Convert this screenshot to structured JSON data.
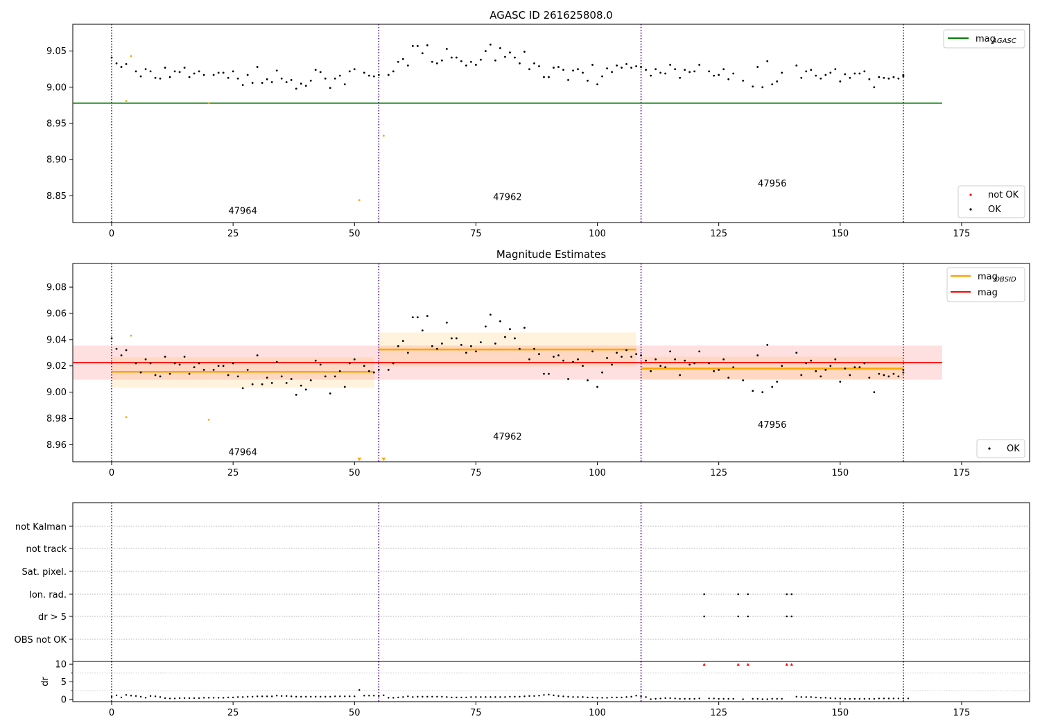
{
  "chart_data": [
    {
      "type": "scatter",
      "title": "AGASC ID 261625808.0",
      "xlim": [
        -8,
        189
      ],
      "ylim": [
        8.813,
        9.087
      ],
      "x_ticks": [
        0,
        25,
        50,
        75,
        100,
        125,
        150,
        175
      ],
      "y_ticks": [
        8.85,
        8.9,
        8.95,
        9.0,
        9.05
      ],
      "y_tick_labels": [
        "8.85",
        "8.90",
        "8.95",
        "9.00",
        "9.05"
      ],
      "obs_boundaries": [
        0,
        55,
        109,
        163
      ],
      "obsids": [
        {
          "label": "47964",
          "x": 27,
          "y": 8.825
        },
        {
          "label": "47962",
          "x": 81.5,
          "y": 8.844
        },
        {
          "label": "47956",
          "x": 136,
          "y": 8.863
        }
      ],
      "mag_agasc": 8.978,
      "mag_agasc_xrange": [
        -8,
        171
      ],
      "legend_lines": [
        {
          "label": "mag",
          "sub": "AGASC",
          "color": "#008000"
        }
      ],
      "legend_points": [
        {
          "label": "not OK",
          "color": "#ff0000"
        },
        {
          "label": "OK",
          "color": "#000000"
        }
      ],
      "ok_points": [
        [
          0,
          9.041
        ],
        [
          1,
          9.033
        ],
        [
          2,
          9.028
        ],
        [
          3,
          9.032
        ],
        [
          5,
          9.022
        ],
        [
          6,
          9.015
        ],
        [
          7,
          9.025
        ],
        [
          8,
          9.022
        ],
        [
          9,
          9.013
        ],
        [
          10,
          9.012
        ],
        [
          11,
          9.027
        ],
        [
          12,
          9.014
        ],
        [
          13,
          9.022
        ],
        [
          14,
          9.021
        ],
        [
          15,
          9.027
        ],
        [
          16,
          9.014
        ],
        [
          17,
          9.019
        ],
        [
          18,
          9.022
        ],
        [
          19,
          9.017
        ],
        [
          21,
          9.017
        ],
        [
          22,
          9.02
        ],
        [
          23,
          9.02
        ],
        [
          24,
          9.013
        ],
        [
          25,
          9.022
        ],
        [
          26,
          9.012
        ],
        [
          27,
          9.003
        ],
        [
          28,
          9.017
        ],
        [
          29,
          9.006
        ],
        [
          30,
          9.028
        ],
        [
          31,
          9.006
        ],
        [
          32,
          9.011
        ],
        [
          33,
          9.007
        ],
        [
          34,
          9.023
        ],
        [
          35,
          9.012
        ],
        [
          36,
          9.007
        ],
        [
          37,
          9.01
        ],
        [
          38,
          8.998
        ],
        [
          39,
          9.005
        ],
        [
          40,
          9.002
        ],
        [
          41,
          9.009
        ],
        [
          42,
          9.024
        ],
        [
          43,
          9.021
        ],
        [
          44,
          9.012
        ],
        [
          45,
          8.999
        ],
        [
          46,
          9.012
        ],
        [
          47,
          9.016
        ],
        [
          48,
          9.004
        ],
        [
          49,
          9.022
        ],
        [
          50,
          9.025
        ],
        [
          52,
          9.02
        ],
        [
          53,
          9.016
        ],
        [
          54,
          9.015
        ],
        [
          55,
          9.017
        ],
        [
          57,
          9.017
        ],
        [
          58,
          9.022
        ],
        [
          59,
          9.035
        ],
        [
          60,
          9.039
        ],
        [
          61,
          9.03
        ],
        [
          62,
          9.057
        ],
        [
          63,
          9.057
        ],
        [
          64,
          9.047
        ],
        [
          65,
          9.058
        ],
        [
          66,
          9.035
        ],
        [
          67,
          9.033
        ],
        [
          68,
          9.037
        ],
        [
          69,
          9.053
        ],
        [
          70,
          9.041
        ],
        [
          71,
          9.041
        ],
        [
          72,
          9.036
        ],
        [
          73,
          9.03
        ],
        [
          74,
          9.035
        ],
        [
          75,
          9.031
        ],
        [
          76,
          9.038
        ],
        [
          77,
          9.05
        ],
        [
          78,
          9.059
        ],
        [
          79,
          9.037
        ],
        [
          80,
          9.054
        ],
        [
          81,
          9.042
        ],
        [
          82,
          9.048
        ],
        [
          83,
          9.041
        ],
        [
          84,
          9.033
        ],
        [
          85,
          9.049
        ],
        [
          86,
          9.025
        ],
        [
          87,
          9.033
        ],
        [
          88,
          9.029
        ],
        [
          89,
          9.014
        ],
        [
          90,
          9.014
        ],
        [
          91,
          9.027
        ],
        [
          92,
          9.028
        ],
        [
          93,
          9.024
        ],
        [
          94,
          9.01
        ],
        [
          95,
          9.023
        ],
        [
          96,
          9.025
        ],
        [
          97,
          9.02
        ],
        [
          98,
          9.009
        ],
        [
          99,
          9.031
        ],
        [
          100,
          9.004
        ],
        [
          101,
          9.015
        ],
        [
          102,
          9.026
        ],
        [
          103,
          9.021
        ],
        [
          104,
          9.03
        ],
        [
          105,
          9.027
        ],
        [
          106,
          9.032
        ],
        [
          107,
          9.027
        ],
        [
          108,
          9.029
        ],
        [
          109,
          9.028
        ],
        [
          110,
          9.024
        ],
        [
          111,
          9.016
        ],
        [
          112,
          9.025
        ],
        [
          113,
          9.02
        ],
        [
          114,
          9.019
        ],
        [
          115,
          9.031
        ],
        [
          116,
          9.025
        ],
        [
          117,
          9.013
        ],
        [
          118,
          9.024
        ],
        [
          119,
          9.021
        ],
        [
          120,
          9.022
        ],
        [
          121,
          9.031
        ],
        [
          123,
          9.022
        ],
        [
          124,
          9.016
        ],
        [
          125,
          9.017
        ],
        [
          126,
          9.025
        ],
        [
          127,
          9.011
        ],
        [
          128,
          9.019
        ],
        [
          130,
          9.009
        ],
        [
          132,
          9.001
        ],
        [
          133,
          9.028
        ],
        [
          134,
          9.0
        ],
        [
          135,
          9.036
        ],
        [
          136,
          9.004
        ],
        [
          137,
          9.008
        ],
        [
          138,
          9.02
        ],
        [
          141,
          9.03
        ],
        [
          142,
          9.013
        ],
        [
          143,
          9.022
        ],
        [
          144,
          9.024
        ],
        [
          145,
          9.016
        ],
        [
          146,
          9.012
        ],
        [
          147,
          9.017
        ],
        [
          148,
          9.02
        ],
        [
          149,
          9.025
        ],
        [
          150,
          9.008
        ],
        [
          151,
          9.018
        ],
        [
          152,
          9.013
        ],
        [
          153,
          9.019
        ],
        [
          154,
          9.019
        ],
        [
          155,
          9.022
        ],
        [
          156,
          9.011
        ],
        [
          157,
          9.0
        ],
        [
          158,
          9.014
        ],
        [
          159,
          9.013
        ],
        [
          160,
          9.012
        ],
        [
          161,
          9.014
        ],
        [
          162,
          9.012
        ],
        [
          163,
          9.015
        ],
        [
          163,
          9.017
        ]
      ],
      "excluded_points": [
        [
          3,
          8.981
        ],
        [
          4,
          9.043
        ],
        [
          20,
          8.978
        ],
        [
          51,
          8.844
        ],
        [
          56,
          8.933
        ]
      ]
    },
    {
      "type": "scatter",
      "title": "Magnitude Estimates",
      "xlim": [
        -8,
        189
      ],
      "ylim": [
        8.947,
        9.098
      ],
      "x_ticks": [
        0,
        25,
        50,
        75,
        100,
        125,
        150,
        175
      ],
      "y_ticks": [
        8.96,
        8.98,
        9.0,
        9.02,
        9.04,
        9.06,
        9.08
      ],
      "y_tick_labels": [
        "8.96",
        "8.98",
        "9.00",
        "9.02",
        "9.04",
        "9.06",
        "9.08"
      ],
      "obs_boundaries": [
        0,
        55,
        109,
        163
      ],
      "obsids": [
        {
          "label": "47964",
          "x": 27,
          "y": 8.952
        },
        {
          "label": "47962",
          "x": 81.5,
          "y": 8.964
        },
        {
          "label": "47956",
          "x": 136,
          "y": 8.973
        }
      ],
      "mag": {
        "value": 9.0225,
        "low": 9.0095,
        "high": 9.0355,
        "xrange": [
          -8,
          171
        ]
      },
      "mag_obsid": [
        {
          "x0": 0,
          "x1": 54,
          "value": 9.0155,
          "low": 9.0035,
          "high": 9.0265
        },
        {
          "x0": 55,
          "x1": 108,
          "value": 9.0325,
          "low": 9.0195,
          "high": 9.0455
        },
        {
          "x0": 109,
          "x1": 163,
          "value": 9.018,
          "low": 9.01,
          "high": 9.027
        }
      ],
      "legend_lines": [
        {
          "label": "mag",
          "sub": "OBSID",
          "color": "#ffa500"
        },
        {
          "label": "mag",
          "sub": "",
          "color": "#ff0000"
        }
      ],
      "legend_points": [
        {
          "label": "OK",
          "color": "#000000"
        }
      ],
      "excluded_points": [
        [
          3,
          8.981
        ],
        [
          4,
          9.043
        ],
        [
          20,
          8.979
        ]
      ],
      "below_range_x": [
        51,
        56
      ]
    },
    {
      "type": "scatter",
      "categories": [
        "not Kalman",
        "not track",
        "Sat. pixel.",
        "Ion. rad.",
        "dr > 5",
        "OBS not OK"
      ],
      "xlim": [
        -8,
        189
      ],
      "x_ticks": [
        0,
        25,
        50,
        75,
        100,
        125,
        150,
        175
      ],
      "obs_boundaries": [
        0,
        55,
        109,
        163
      ],
      "flags": {
        "Ion. rad.": [
          122,
          129,
          131,
          139,
          140
        ],
        "dr > 5": [
          122,
          129,
          131,
          139,
          140
        ]
      },
      "dr": {
        "ylabel": "dr",
        "ylim": [
          -0.6,
          10.8
        ],
        "y_ticks": [
          0,
          5,
          10
        ],
        "y_tick_labels": [
          "0",
          "5",
          "10"
        ],
        "clipped_x": [
          122,
          129,
          131,
          139,
          140
        ],
        "values": [
          0.8,
          1.2,
          0.6,
          1.3,
          1.1,
          1.0,
          0.8,
          0.5,
          1.0,
          0.9,
          0.7,
          0.4,
          0.3,
          0.3,
          0.4,
          0.4,
          0.4,
          0.4,
          0.4,
          0.5,
          0.5,
          0.5,
          0.5,
          0.5,
          0.6,
          0.6,
          0.7,
          0.7,
          0.8,
          0.8,
          0.9,
          0.9,
          0.9,
          0.9,
          1.1,
          1.0,
          1.0,
          0.9,
          0.8,
          0.8,
          0.8,
          0.8,
          0.8,
          0.8,
          0.8,
          0.8,
          0.9,
          0.9,
          0.9,
          0.9,
          0.9,
          2.7,
          1.1,
          1.1,
          1.1,
          1.0,
          1.2,
          0.5,
          0.5,
          0.6,
          0.7,
          0.9,
          0.7,
          0.8,
          0.8,
          0.8,
          0.8,
          0.8,
          0.8,
          0.7,
          0.6,
          0.6,
          0.6,
          0.6,
          0.7,
          0.7,
          0.7,
          0.7,
          0.7,
          0.7,
          0.7,
          0.7,
          0.8,
          0.8,
          0.8,
          0.9,
          1.0,
          1.0,
          1.1,
          1.3,
          1.4,
          1.2,
          1.0,
          0.9,
          0.8,
          0.7,
          0.7,
          0.7,
          0.6,
          0.6,
          0.5,
          0.5,
          0.5,
          0.6,
          0.6,
          0.6,
          0.7,
          0.8,
          1.1,
          0.9,
          0.7,
          0.1,
          0.2,
          0.3,
          0.4,
          0.4,
          0.3,
          0.2,
          0.2,
          0.2,
          0.2,
          0.3,
          null,
          0.3,
          0.3,
          0.2,
          0.2,
          0.2,
          0.2,
          null,
          0.1,
          null,
          0.2,
          0.2,
          0.1,
          0.1,
          0.2,
          0.2,
          0.2,
          null,
          null,
          0.8,
          0.7,
          0.7,
          0.7,
          0.6,
          0.5,
          0.5,
          0.4,
          0.3,
          0.3,
          0.2,
          0.2,
          0.2,
          0.2,
          0.2,
          0.2,
          0.2,
          0.3,
          0.3,
          0.3,
          0.3,
          0.3,
          0.3,
          0.3
        ]
      }
    }
  ]
}
